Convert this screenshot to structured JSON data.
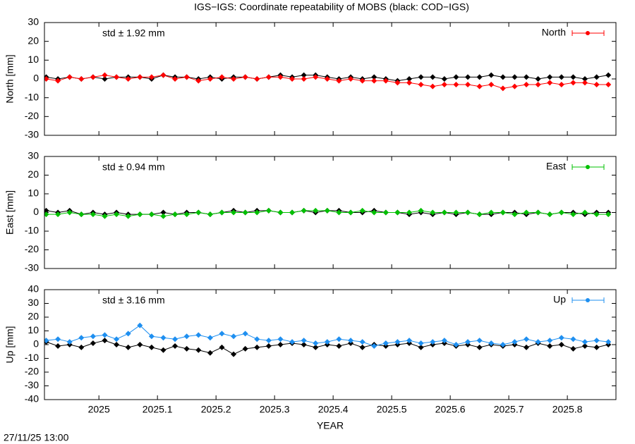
{
  "title": "IGS−IGS: Coordinate repeatability of MOBS (black: COD−IGS)",
  "timestamp": "27/11/25 13:00",
  "chart_data": [
    {
      "type": "line",
      "y_label": "North [mm]",
      "annotation": "std ± 1.92 mm",
      "legend": "top-right",
      "x": [
        2024.91,
        2024.93,
        2024.95,
        2024.97,
        2024.99,
        2025.01,
        2025.03,
        2025.05,
        2025.07,
        2025.09,
        2025.11,
        2025.13,
        2025.15,
        2025.17,
        2025.19,
        2025.21,
        2025.23,
        2025.25,
        2025.27,
        2025.29,
        2025.31,
        2025.33,
        2025.35,
        2025.37,
        2025.39,
        2025.41,
        2025.43,
        2025.45,
        2025.47,
        2025.49,
        2025.51,
        2025.53,
        2025.55,
        2025.57,
        2025.59,
        2025.61,
        2025.63,
        2025.65,
        2025.67,
        2025.69,
        2025.71,
        2025.73,
        2025.75,
        2025.77,
        2025.79,
        2025.81,
        2025.83,
        2025.85,
        2025.87
      ],
      "xlim": [
        2024.907,
        2025.883
      ],
      "xticks": [
        2025,
        2025.1,
        2025.2,
        2025.3,
        2025.4,
        2025.5,
        2025.6,
        2025.7,
        2025.8
      ],
      "ylim": [
        -30,
        30
      ],
      "yticks": [
        -30,
        -20,
        -10,
        0,
        10,
        20,
        30
      ],
      "series": [
        {
          "color": "#000000",
          "values": [
            1,
            0,
            1,
            0,
            1,
            0,
            1,
            1,
            1,
            0,
            2,
            1,
            1,
            0,
            1,
            0,
            1,
            1,
            0,
            1,
            2,
            1,
            2,
            2,
            1,
            0,
            1,
            0,
            1,
            0,
            -1,
            0,
            1,
            1,
            0,
            1,
            1,
            1,
            2,
            1,
            1,
            1,
            0,
            1,
            1,
            1,
            0,
            1,
            2
          ]
        },
        {
          "name": "North",
          "color": "#ff0000",
          "values": [
            0,
            -1,
            1,
            0,
            1,
            2,
            1,
            0,
            1,
            1,
            2,
            0,
            1,
            -1,
            0,
            1,
            0,
            1,
            0,
            1,
            1,
            0,
            0,
            1,
            0,
            -1,
            0,
            -1,
            -1,
            -1,
            -2,
            -2,
            -3,
            -4,
            -3,
            -3,
            -3,
            -4,
            -3,
            -5,
            -4,
            -3,
            -3,
            -2,
            -3,
            -2,
            -2,
            -3,
            -3
          ]
        }
      ]
    },
    {
      "type": "line",
      "y_label": "East [mm]",
      "annotation": "std ± 0.94 mm",
      "legend": "top-right",
      "x": [
        2024.91,
        2024.93,
        2024.95,
        2024.97,
        2024.99,
        2025.01,
        2025.03,
        2025.05,
        2025.07,
        2025.09,
        2025.11,
        2025.13,
        2025.15,
        2025.17,
        2025.19,
        2025.21,
        2025.23,
        2025.25,
        2025.27,
        2025.29,
        2025.31,
        2025.33,
        2025.35,
        2025.37,
        2025.39,
        2025.41,
        2025.43,
        2025.45,
        2025.47,
        2025.49,
        2025.51,
        2025.53,
        2025.55,
        2025.57,
        2025.59,
        2025.61,
        2025.63,
        2025.65,
        2025.67,
        2025.69,
        2025.71,
        2025.73,
        2025.75,
        2025.77,
        2025.79,
        2025.81,
        2025.83,
        2025.85,
        2025.87
      ],
      "xlim": [
        2024.907,
        2025.883
      ],
      "xticks": [
        2025,
        2025.1,
        2025.2,
        2025.3,
        2025.4,
        2025.5,
        2025.6,
        2025.7,
        2025.8
      ],
      "ylim": [
        -30,
        30
      ],
      "yticks": [
        -30,
        -20,
        -10,
        0,
        10,
        20,
        30
      ],
      "series": [
        {
          "color": "#000000",
          "values": [
            1,
            0,
            1,
            -1,
            0,
            -1,
            0,
            -1,
            -1,
            -1,
            0,
            -1,
            0,
            0,
            -1,
            0,
            1,
            0,
            1,
            1,
            0,
            0,
            1,
            0,
            1,
            1,
            0,
            0,
            1,
            0,
            0,
            -1,
            0,
            -1,
            0,
            -1,
            0,
            -1,
            -1,
            0,
            0,
            -1,
            0,
            -1,
            0,
            0,
            -1,
            0,
            0
          ]
        },
        {
          "name": "East",
          "color": "#00c000",
          "values": [
            -1,
            -1,
            0,
            -1,
            -1,
            -2,
            -1,
            -2,
            -1,
            -1,
            -2,
            -1,
            -1,
            0,
            -1,
            0,
            0,
            0,
            0,
            1,
            0,
            0,
            1,
            1,
            1,
            0,
            0,
            1,
            0,
            0,
            0,
            0,
            1,
            0,
            0,
            0,
            0,
            -1,
            0,
            0,
            -1,
            0,
            0,
            -1,
            0,
            -1,
            0,
            -1,
            -1
          ]
        }
      ]
    },
    {
      "type": "line",
      "y_label": "Up [mm]",
      "annotation": "std ± 3.16 mm",
      "legend": "top-right",
      "x_label": "YEAR",
      "x": [
        2024.91,
        2024.93,
        2024.95,
        2024.97,
        2024.99,
        2025.01,
        2025.03,
        2025.05,
        2025.07,
        2025.09,
        2025.11,
        2025.13,
        2025.15,
        2025.17,
        2025.19,
        2025.21,
        2025.23,
        2025.25,
        2025.27,
        2025.29,
        2025.31,
        2025.33,
        2025.35,
        2025.37,
        2025.39,
        2025.41,
        2025.43,
        2025.45,
        2025.47,
        2025.49,
        2025.51,
        2025.53,
        2025.55,
        2025.57,
        2025.59,
        2025.61,
        2025.63,
        2025.65,
        2025.67,
        2025.69,
        2025.71,
        2025.73,
        2025.75,
        2025.77,
        2025.79,
        2025.81,
        2025.83,
        2025.85,
        2025.87
      ],
      "xlim": [
        2024.907,
        2025.883
      ],
      "xticks": [
        2025,
        2025.1,
        2025.2,
        2025.3,
        2025.4,
        2025.5,
        2025.6,
        2025.7,
        2025.8
      ],
      "xtick_labels": true,
      "ylim": [
        -40,
        40
      ],
      "yticks": [
        -40,
        -30,
        -20,
        -10,
        0,
        10,
        20,
        30,
        40
      ],
      "series": [
        {
          "color": "#000000",
          "values": [
            2,
            -1,
            0,
            -2,
            1,
            3,
            0,
            -2,
            0,
            -2,
            -4,
            -1,
            -3,
            -4,
            -6,
            -2,
            -7,
            -3,
            -2,
            -1,
            0,
            1,
            0,
            -2,
            0,
            -1,
            1,
            -2,
            0,
            -1,
            0,
            1,
            -2,
            0,
            1,
            -1,
            0,
            -2,
            0,
            -1,
            0,
            -2,
            1,
            -1,
            0,
            -3,
            -1,
            -2,
            0
          ]
        },
        {
          "name": "Up",
          "color": "#1e8ff0",
          "values": [
            3,
            4,
            2,
            5,
            6,
            7,
            4,
            8,
            14,
            6,
            5,
            4,
            6,
            7,
            5,
            8,
            6,
            8,
            4,
            3,
            4,
            2,
            3,
            1,
            2,
            4,
            3,
            2,
            -1,
            1,
            2,
            3,
            1,
            2,
            3,
            0,
            2,
            3,
            1,
            0,
            2,
            4,
            2,
            3,
            5,
            4,
            2,
            3,
            2
          ]
        }
      ]
    }
  ]
}
